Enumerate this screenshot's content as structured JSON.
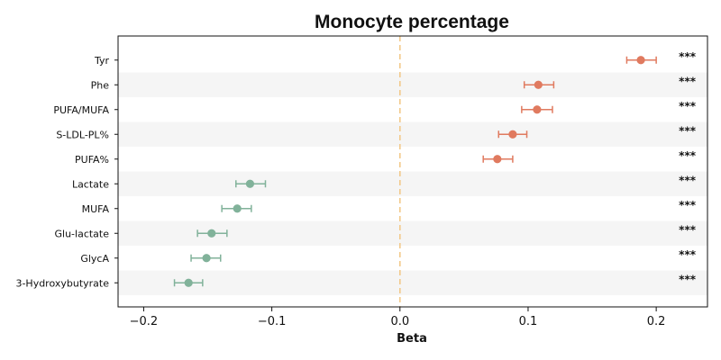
{
  "chart_data": {
    "type": "scatter",
    "title": "Monocyte percentage",
    "xlabel": "Beta",
    "ylabel": "",
    "xlim": [
      -0.22,
      0.24
    ],
    "xticks": [
      -0.2,
      -0.1,
      0.0,
      0.1,
      0.2
    ],
    "xtick_labels": [
      "−0.2",
      "−0.1",
      "0.0",
      "0.1",
      "0.2"
    ],
    "reference_line": {
      "x": 0.0,
      "style": "dashed",
      "color": "#f2c98a"
    },
    "row_banding": true,
    "grid": false,
    "colors": {
      "positive": "#e07a5f",
      "negative": "#81b29a",
      "band": "#f5f5f5"
    },
    "points": [
      {
        "label": "Tyr",
        "beta": 0.188,
        "ci_low": 0.177,
        "ci_high": 0.2,
        "significance": "***"
      },
      {
        "label": "Phe",
        "beta": 0.108,
        "ci_low": 0.097,
        "ci_high": 0.12,
        "significance": "***"
      },
      {
        "label": "PUFA/MUFA",
        "beta": 0.107,
        "ci_low": 0.095,
        "ci_high": 0.119,
        "significance": "***"
      },
      {
        "label": "S-LDL-PL%",
        "beta": 0.088,
        "ci_low": 0.077,
        "ci_high": 0.099,
        "significance": "***"
      },
      {
        "label": "PUFA%",
        "beta": 0.076,
        "ci_low": 0.065,
        "ci_high": 0.088,
        "significance": "***"
      },
      {
        "label": "Lactate",
        "beta": -0.117,
        "ci_low": -0.128,
        "ci_high": -0.105,
        "significance": "***"
      },
      {
        "label": "MUFA",
        "beta": -0.127,
        "ci_low": -0.139,
        "ci_high": -0.116,
        "significance": "***"
      },
      {
        "label": "Glu-lactate",
        "beta": -0.147,
        "ci_low": -0.158,
        "ci_high": -0.135,
        "significance": "***"
      },
      {
        "label": "GlycA",
        "beta": -0.151,
        "ci_low": -0.163,
        "ci_high": -0.14,
        "significance": "***"
      },
      {
        "label": "3-Hydroxybutyrate",
        "beta": -0.165,
        "ci_low": -0.176,
        "ci_high": -0.154,
        "significance": "***"
      }
    ]
  }
}
